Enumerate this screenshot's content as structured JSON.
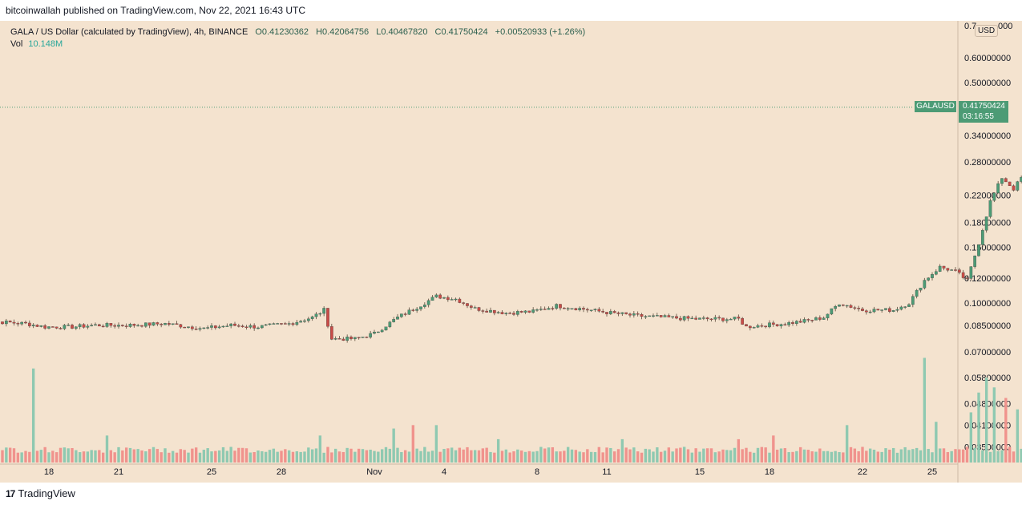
{
  "header": {
    "published_by": "bitcoinwallah published on TradingView.com, Nov 22, 2021 16:43 UTC"
  },
  "legend": {
    "title": "GALA / US Dollar (calculated by TradingView), 4h, BINANCE",
    "open": "O0.41230362",
    "high": "H0.42064756",
    "low": "L0.40467820",
    "close": "C0.41750424",
    "change": "+0.00520933 (+1.26%)",
    "vol_label": "Vol",
    "vol_value": "10.148M"
  },
  "price_axis": {
    "currency": "USD",
    "top_label_partial": "0.7",
    "top_label_partial_tail": "000"
  },
  "last_price": {
    "symbol": "GALAUSD",
    "price": "0.41750424",
    "countdown": "03:16:55"
  },
  "footer": {
    "brand": "TradingView",
    "mark": "17"
  },
  "colors": {
    "up": "#4c9b75",
    "down": "#c94b46",
    "background": "#f4e3cf",
    "vol_up": "#8fc9b1",
    "vol_down": "#f0938d"
  },
  "chart_data": {
    "type": "candlestick",
    "symbol": "GALAUSD",
    "timeframe": "4h",
    "exchange": "BINANCE",
    "scale": "log",
    "y_ticks": [
      0.7,
      0.6,
      0.5,
      0.41,
      0.34,
      0.28,
      0.22,
      0.18,
      0.15,
      0.12,
      0.1,
      0.085,
      0.07,
      0.058,
      0.048,
      0.041,
      0.035
    ],
    "y_tick_labels": [
      "0.70000000",
      "0.60000000",
      "0.50000000",
      "0.41000000",
      "0.34000000",
      "0.28000000",
      "0.22000000",
      "0.18000000",
      "0.15000000",
      "0.12000000",
      "0.10000000",
      "0.08500000",
      "0.07000000",
      "0.05800000",
      "0.04800000",
      "0.04100000",
      "0.03500000"
    ],
    "x_tick_labels": [
      "18",
      "21",
      "25",
      "28",
      "Nov",
      "4",
      "8",
      "11",
      "15",
      "18",
      "22",
      "25"
    ],
    "x_tick_days": [
      18,
      21,
      25,
      28,
      32,
      35,
      39,
      42,
      46,
      49,
      53,
      56
    ],
    "first_candle_day": 15.0,
    "candles_per_day": 6,
    "anchors": [
      [
        0,
        0.088
      ],
      [
        6,
        0.087
      ],
      [
        12,
        0.086
      ],
      [
        17,
        0.084
      ],
      [
        24,
        0.084
      ],
      [
        30,
        0.085
      ],
      [
        38,
        0.085
      ],
      [
        48,
        0.086
      ],
      [
        58,
        0.083
      ],
      [
        65,
        0.085
      ],
      [
        72,
        0.084
      ],
      [
        80,
        0.086
      ],
      [
        86,
        0.09
      ],
      [
        89,
        0.095
      ],
      [
        91,
        0.077
      ],
      [
        97,
        0.077
      ],
      [
        102,
        0.08
      ],
      [
        108,
        0.09
      ],
      [
        113,
        0.097
      ],
      [
        118,
        0.105
      ],
      [
        123,
        0.103
      ],
      [
        128,
        0.096
      ],
      [
        136,
        0.093
      ],
      [
        143,
        0.094
      ],
      [
        149,
        0.098
      ],
      [
        155,
        0.096
      ],
      [
        163,
        0.093
      ],
      [
        170,
        0.091
      ],
      [
        177,
        0.09
      ],
      [
        185,
        0.089
      ],
      [
        192,
        0.089
      ],
      [
        196,
        0.089
      ],
      [
        198,
        0.084
      ],
      [
        202,
        0.085
      ],
      [
        208,
        0.086
      ],
      [
        214,
        0.088
      ],
      [
        218,
        0.09
      ],
      [
        222,
        0.1
      ],
      [
        228,
        0.095
      ],
      [
        236,
        0.095
      ],
      [
        240,
        0.1
      ],
      [
        244,
        0.118
      ],
      [
        248,
        0.13
      ],
      [
        252,
        0.126
      ],
      [
        255,
        0.118
      ],
      [
        258,
        0.155
      ],
      [
        261,
        0.21
      ],
      [
        264,
        0.25
      ],
      [
        267,
        0.23
      ],
      [
        270,
        0.26
      ],
      [
        273,
        0.235
      ],
      [
        278,
        0.24
      ],
      [
        283,
        0.235
      ],
      [
        286,
        0.25
      ],
      [
        289,
        0.33
      ],
      [
        292,
        0.36
      ],
      [
        295,
        0.385
      ],
      [
        298,
        0.47
      ],
      [
        301,
        0.48
      ],
      [
        303,
        0.42
      ],
      [
        305,
        0.375
      ],
      [
        308,
        0.385
      ],
      [
        310,
        0.405
      ],
      [
        311,
        0.4175
      ]
    ],
    "volume_spikes": [
      [
        14,
        0.062
      ],
      [
        33,
        0.038
      ],
      [
        88,
        0.038
      ],
      [
        107,
        0.04
      ],
      [
        112,
        0.041
      ],
      [
        118,
        0.041
      ],
      [
        134,
        0.037
      ],
      [
        166,
        0.037
      ],
      [
        196,
        0.037
      ],
      [
        205,
        0.038
      ],
      [
        224,
        0.041
      ],
      [
        244,
        0.067
      ],
      [
        247,
        0.042
      ],
      [
        256,
        0.045
      ],
      [
        258,
        0.052
      ],
      [
        260,
        0.058
      ],
      [
        262,
        0.054
      ],
      [
        265,
        0.05
      ],
      [
        268,
        0.046
      ],
      [
        276,
        0.046
      ],
      [
        282,
        0.048
      ],
      [
        286,
        0.047
      ],
      [
        289,
        0.045
      ],
      [
        294,
        0.044
      ],
      [
        298,
        0.042
      ],
      [
        303,
        0.043
      ]
    ]
  }
}
